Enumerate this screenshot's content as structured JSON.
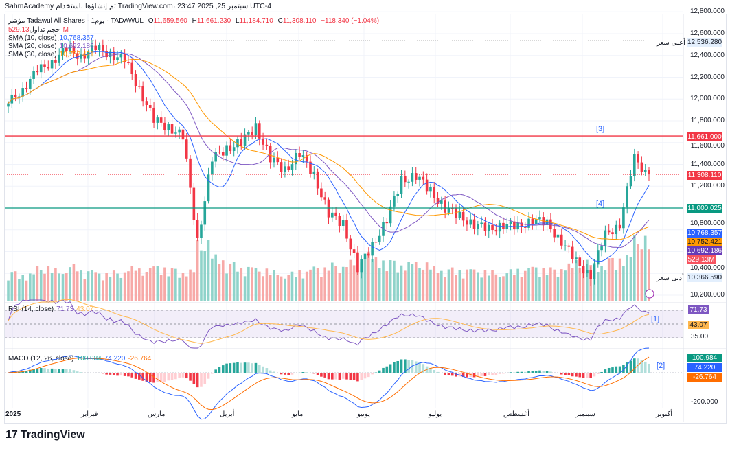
{
  "header": {
    "topline": "SahmAcademy تم إنشاؤها باستخدام TradingView.com، 23:47 2025 ,25 سبتمبر UTC-4",
    "symbol": "مؤشر Tadawul All Shares · 1يوم · TADAWUL",
    "o_label": "O",
    "open": "11,659.560",
    "h_label": "H",
    "high": "11,661.230",
    "l_label": "L",
    "low": "11,184.710",
    "c_label": "C",
    "close": "11,308.110",
    "change": "−118.340 (−1.04%)",
    "volume_label": "حجم تداول",
    "volume": "529.13M",
    "sma10_label": "SMA (10, close)",
    "sma10": "10,768.357",
    "sma20_label": "SMA (20, close)",
    "sma20": "10,692.186",
    "sma30_label": "SMA (30, close)",
    "sma30": "10,752.421"
  },
  "colors": {
    "up": "#26a69a",
    "down": "#f23645",
    "sma10": "#2962ff",
    "sma20": "#7e57c2",
    "sma30": "#ff9800",
    "rsi": "#7e57c2",
    "rsi_ma": "#ffb74d",
    "macd": "#2962ff",
    "signal": "#ff6d00"
  },
  "price_axis": [
    "12,800.000",
    "12,600.000",
    "12,400.000",
    "12,200.000",
    "12,000.000",
    "11,800.000",
    "11,600.000",
    "11,400.000",
    "11,200.000",
    "10,800.000",
    "10,400.000",
    "10,200.000"
  ],
  "price_ticks": [
    12800,
    12600,
    12400,
    12200,
    12000,
    11800,
    11600,
    11400,
    11200,
    10800,
    10400,
    10200
  ],
  "price_tags": {
    "high_label": "أعلى سعر",
    "high": "12,536.280",
    "low_label": "أدنى سعر",
    "low": "10,366.590",
    "line_red": "11,661.000",
    "last": "11,308.110",
    "line_green": "11,000.025",
    "sma10": "10,768.357",
    "sma30": "10,752.421",
    "sma20": "10,692.186",
    "vol": "529.13M"
  },
  "annotations": {
    "n1": "[1]",
    "n2": "[2]",
    "n3": "[3]",
    "n4": "[4]"
  },
  "rsi": {
    "label": "RSI (14, close)",
    "value": "71.73",
    "ma": "43.07",
    "axis_35": "35.00"
  },
  "macd": {
    "label": "MACD (12, 26, close)",
    "hist": "100.984",
    "macd": "74.220",
    "signal": "-26.764",
    "axis_m200": "-200.000"
  },
  "time_axis": [
    "2025",
    "فبراير",
    "مارس",
    "أبريل",
    "مايو",
    "يونيو",
    "يوليو",
    "أغسطس",
    "سبتمبر",
    "أكتوبر"
  ],
  "logo": "TradingView",
  "chart_data": {
    "type": "candlestick",
    "title": "Tadawul All Shares · 1D · TADAWUL",
    "ylim": [
      10150,
      12850
    ],
    "weekly_closes": [
      11960,
      12100,
      12250,
      12350,
      12450,
      12400,
      12460,
      12420,
      12350,
      12100,
      11800,
      11750,
      11650,
      10700,
      11450,
      11550,
      11600,
      11750,
      11450,
      11350,
      11500,
      11300,
      10950,
      10850,
      10450,
      10650,
      10900,
      11250,
      11300,
      11150,
      11000,
      10920,
      10850,
      10800,
      10850,
      10820,
      10900,
      10850,
      10700,
      10500,
      10390,
      10750,
      10860,
      11450,
      11308
    ],
    "weekly_volume_m": [
      260,
      240,
      300,
      280,
      320,
      270,
      250,
      260,
      300,
      280,
      310,
      290,
      270,
      520,
      400,
      340,
      300,
      280,
      260,
      250,
      270,
      300,
      330,
      350,
      420,
      380,
      360,
      340,
      330,
      300,
      290,
      280,
      270,
      260,
      270,
      280,
      300,
      290,
      320,
      350,
      330,
      380,
      400,
      560,
      529
    ],
    "horizontal_lines": [
      {
        "price": 11661.0,
        "color": "red"
      },
      {
        "price": 11000.025,
        "color": "green"
      }
    ],
    "highest": 12536.28,
    "lowest": 10366.59,
    "rsi_levels": [
      70,
      50,
      30
    ]
  }
}
